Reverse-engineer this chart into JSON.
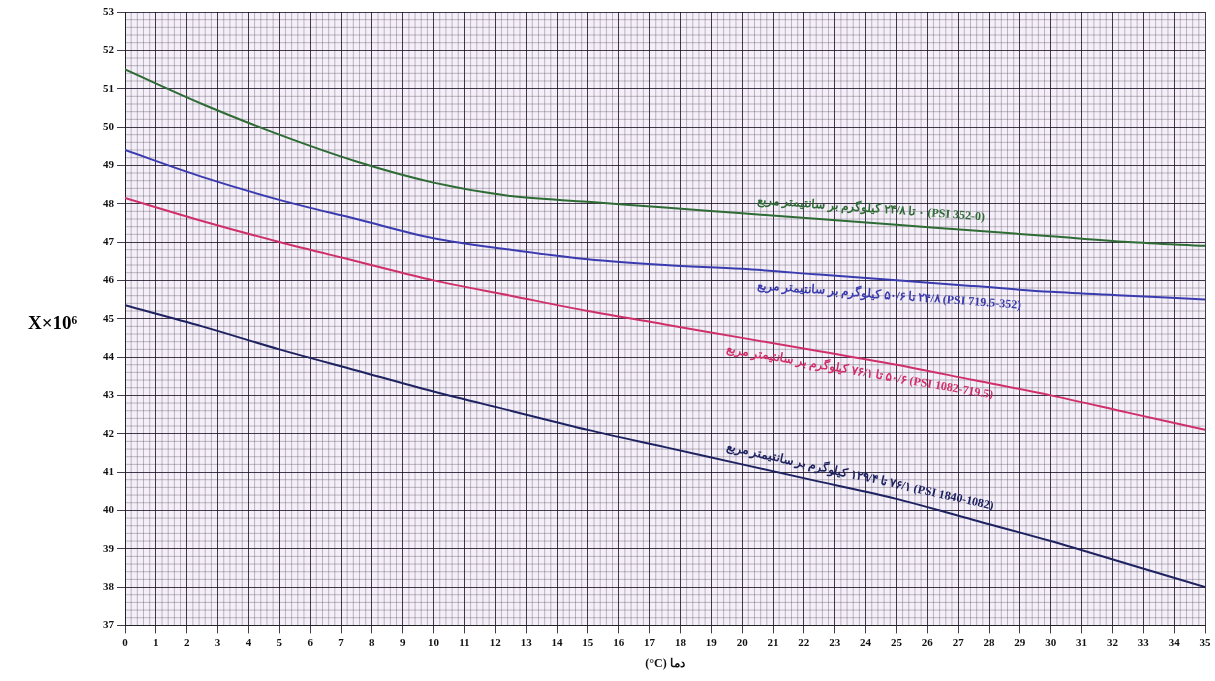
{
  "chart_data": {
    "type": "line",
    "xlabel": "(°C) دما",
    "ylabel": "X×10⁶",
    "x": [
      0,
      2.5,
      5,
      7.5,
      10,
      12.5,
      15,
      17.5,
      20,
      22.5,
      25,
      27.5,
      30,
      32.5,
      35
    ],
    "series": [
      {
        "name": "(PSI 352-0) ۰ تا ۲۴/۸ کیلوگرم بر سانتیمتر مربع",
        "color": "#2e6b35",
        "values": [
          51.5,
          50.6,
          49.8,
          49.1,
          48.55,
          48.2,
          48.05,
          47.9,
          47.75,
          47.6,
          47.45,
          47.3,
          47.15,
          47.0,
          46.9
        ]
      },
      {
        "name": "(PSI 719.5-352) ۲۴/۸ تا ۵۰/۶ کیلوگرم بر سانتیمتر مربع",
        "color": "#3b3bb0",
        "values": [
          49.4,
          48.7,
          48.1,
          47.6,
          47.1,
          46.8,
          46.55,
          46.4,
          46.3,
          46.15,
          46.0,
          45.85,
          45.7,
          45.6,
          45.5
        ]
      },
      {
        "name": "(PSI 1082-719.5) ۵۰/۶ تا ۷۶/۱ کیلوگرم بر سانتیمتر مربع",
        "color": "#d0306a",
        "values": [
          48.15,
          47.55,
          47.0,
          46.5,
          46.0,
          45.6,
          45.2,
          44.85,
          44.5,
          44.15,
          43.8,
          43.4,
          43.0,
          42.55,
          42.1
        ]
      },
      {
        "name": "(PSI 1840-1082) ۷۶/۱ تا ۱۲۹/۴ کیلوگرم بر سانتیمتر مربع",
        "color": "#1e2260",
        "values": [
          45.35,
          44.8,
          44.2,
          43.65,
          43.1,
          42.6,
          42.1,
          41.65,
          41.2,
          40.75,
          40.3,
          39.75,
          39.2,
          38.6,
          38.0
        ]
      }
    ],
    "xlim": [
      0,
      35
    ],
    "xticks": [
      0,
      1,
      2,
      3,
      4,
      5,
      6,
      7,
      8,
      9,
      10,
      11,
      12,
      13,
      14,
      15,
      16,
      17,
      18,
      19,
      20,
      21,
      22,
      23,
      24,
      25,
      26,
      27,
      28,
      29,
      30,
      31,
      32,
      33,
      34,
      35
    ],
    "ylim": [
      37,
      53
    ],
    "yticks": [
      37,
      38,
      39,
      40,
      41,
      42,
      43,
      44,
      45,
      46,
      47,
      48,
      49,
      50,
      51,
      52,
      53
    ],
    "grid": true,
    "legend": false,
    "marker": "none",
    "line_style": "solid"
  }
}
